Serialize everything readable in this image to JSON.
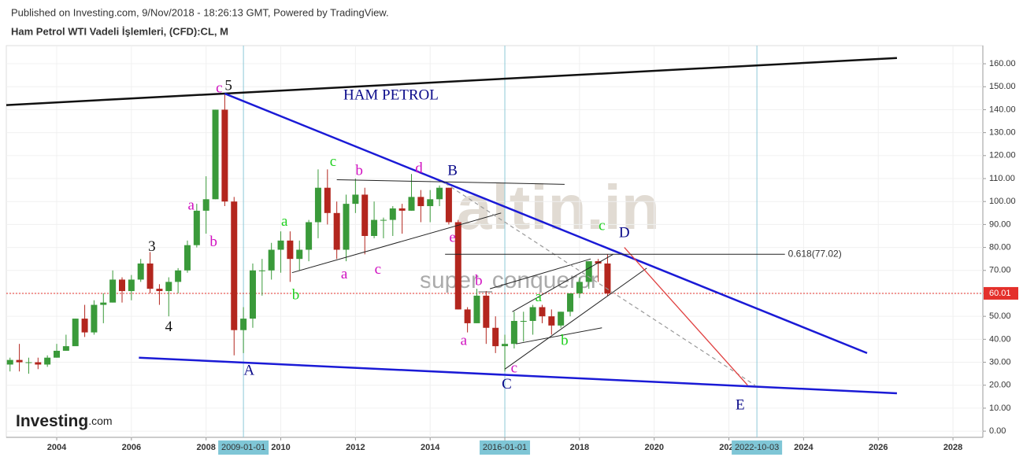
{
  "header": {
    "published": "Published on Investing.com, 9/Nov/2018 - 18:26:13 GMT, Powered by TradingView.",
    "symbol": "Ham Petrol WTI Vadeli İşlemleri, (CFD):CL, M"
  },
  "logo": {
    "name": "Investing",
    "suffix": ".com"
  },
  "watermarks": [
    "altin.in",
    "super_conqueror"
  ],
  "chart_data": {
    "type": "candlestick",
    "grid": true,
    "xlim": [
      2002.65,
      2028.8
    ],
    "xticks": [
      2004,
      2006,
      2008,
      2010,
      2012,
      2014,
      2016,
      2018,
      2020,
      2022,
      2024,
      2026,
      2028
    ],
    "ylim": [
      -2.7,
      167.9
    ],
    "yticks": [
      {
        "value": 0,
        "label": "0.00"
      },
      {
        "value": 10,
        "label": "10.00"
      },
      {
        "value": 20,
        "label": "20.00"
      },
      {
        "value": 30,
        "label": "30.00"
      },
      {
        "value": 40,
        "label": "40.00"
      },
      {
        "value": 50,
        "label": "50.00"
      },
      {
        "value": 60,
        "label": "60.00"
      },
      {
        "value": 70,
        "label": "70.00"
      },
      {
        "value": 80,
        "label": "80.00"
      },
      {
        "value": 90,
        "label": "90.00"
      },
      {
        "value": 100,
        "label": "100.00"
      },
      {
        "value": 110,
        "label": "110.00"
      },
      {
        "value": 120,
        "label": "120.00"
      },
      {
        "value": 130,
        "label": "130.00"
      },
      {
        "value": 140,
        "label": "140.00"
      },
      {
        "value": 150,
        "label": "150.00"
      },
      {
        "value": 160,
        "label": "160.00"
      }
    ],
    "up_color": "#3a9a3a",
    "down_color": "#b3261e",
    "last_price": 60.01,
    "last_price_color": "#e4302b",
    "x": [
      2002.75,
      2003,
      2003.25,
      2003.5,
      2003.75,
      2004,
      2004.25,
      2004.5,
      2004.75,
      2005,
      2005.25,
      2005.5,
      2005.75,
      2006,
      2006.25,
      2006.5,
      2006.75,
      2007,
      2007.25,
      2007.5,
      2007.75,
      2008,
      2008.25,
      2008.5,
      2008.75,
      2009,
      2009.25,
      2009.5,
      2009.75,
      2010,
      2010.25,
      2010.5,
      2010.75,
      2011,
      2011.25,
      2011.5,
      2011.75,
      2012,
      2012.25,
      2012.5,
      2012.75,
      2013,
      2013.25,
      2013.5,
      2013.75,
      2014,
      2014.25,
      2014.5,
      2014.75,
      2015,
      2015.25,
      2015.5,
      2015.75,
      2016,
      2016.25,
      2016.5,
      2016.75,
      2017,
      2017.25,
      2017.5,
      2017.75,
      2018,
      2018.25,
      2018.5,
      2018.75
    ],
    "open": [
      29,
      31,
      30,
      30,
      29,
      32,
      35,
      37,
      49,
      43,
      55,
      56,
      66,
      61,
      66,
      73,
      62,
      61,
      65,
      70,
      81,
      96,
      101,
      140,
      100,
      44,
      49,
      70,
      70,
      79,
      83,
      75,
      79,
      91,
      106,
      95,
      79,
      99,
      103,
      85,
      92,
      92,
      97,
      96,
      102,
      98,
      101,
      106,
      91,
      53,
      47,
      59,
      45,
      37,
      38,
      48,
      48,
      54,
      50,
      46,
      52,
      60,
      65,
      74,
      73
    ],
    "high": [
      32,
      38,
      32,
      32,
      33,
      38,
      42,
      49,
      55,
      57,
      60,
      70,
      67,
      68,
      75,
      78,
      64,
      67,
      71,
      83,
      99,
      111,
      140,
      147,
      102,
      54,
      73,
      75,
      82,
      87,
      87,
      83,
      92,
      114,
      114,
      100,
      103,
      110,
      106,
      100,
      93,
      98,
      99,
      112,
      105,
      105,
      107,
      106,
      92,
      54,
      62,
      61,
      50,
      42,
      52,
      52,
      55,
      55,
      53,
      52,
      60,
      67,
      73,
      75,
      77
    ],
    "low": [
      26,
      26,
      25,
      27,
      28,
      32,
      35,
      38,
      41,
      42,
      47,
      56,
      56,
      57,
      65,
      60,
      55,
      50,
      60,
      69,
      80,
      86,
      101,
      98,
      33,
      34,
      45,
      59,
      66,
      69,
      65,
      70,
      74,
      84,
      90,
      75,
      74,
      95,
      77,
      84,
      84,
      85,
      86,
      96,
      91,
      91,
      98,
      90,
      53,
      43,
      47,
      38,
      34,
      26,
      36,
      39,
      42,
      47,
      42,
      45,
      50,
      58,
      62,
      65,
      59
    ],
    "close": [
      31,
      30,
      30,
      29,
      32,
      35,
      37,
      49,
      43,
      55,
      56,
      66,
      61,
      66,
      73,
      62,
      61,
      65,
      70,
      81,
      96,
      101,
      140,
      100,
      44,
      49,
      70,
      70,
      79,
      83,
      75,
      79,
      91,
      106,
      95,
      79,
      99,
      103,
      85,
      92,
      92,
      97,
      96,
      102,
      98,
      101,
      106,
      91,
      53,
      47,
      59,
      45,
      37,
      38,
      48,
      48,
      54,
      50,
      46,
      52,
      60,
      65,
      74,
      73,
      60.01
    ],
    "vlines": [
      {
        "value": 2009.0,
        "label": "2009-01-01"
      },
      {
        "value": 2016.0,
        "label": "2016-01-01"
      },
      {
        "value": 2022.75,
        "label": "2022-10-03"
      }
    ],
    "lines": [
      {
        "color": "#111111",
        "width": 2.5,
        "x": [
          2002.65,
          2026.5
        ],
        "y": [
          142,
          162.5
        ]
      },
      {
        "color": "#1a1ad6",
        "width": 2.5,
        "x": [
          2008.5,
          2025.7
        ],
        "y": [
          147,
          34
        ]
      },
      {
        "color": "#1a1ad6",
        "width": 2.5,
        "x": [
          2006.2,
          2026.5
        ],
        "y": [
          32,
          16.5
        ]
      },
      {
        "color": "#222222",
        "width": 1,
        "x": [
          2011.5,
          2017.6
        ],
        "y": [
          109.5,
          107.5
        ]
      },
      {
        "color": "#222222",
        "width": 1,
        "x": [
          2010.3,
          2015.9
        ],
        "y": [
          69,
          95
        ]
      },
      {
        "color": "#222222",
        "width": 1,
        "x": [
          2016,
          2019.8
        ],
        "y": [
          27,
          71
        ]
      },
      {
        "color": "#222222",
        "width": 1,
        "x": [
          2016.2,
          2018.9
        ],
        "y": [
          52,
          77
        ]
      },
      {
        "color": "#222222",
        "width": 1,
        "x": [
          2016.3,
          2018.6
        ],
        "y": [
          38,
          45
        ]
      },
      {
        "color": "#222222",
        "width": 1,
        "x": [
          2015.6,
          2018.3
        ],
        "y": [
          62,
          75
        ]
      },
      {
        "color": "#999999",
        "width": 1.2,
        "dash": "5,4",
        "x": [
          2014.4,
          2022.7
        ],
        "y": [
          108,
          20
        ]
      },
      {
        "color": "#e04040",
        "width": 1.3,
        "x": [
          2019.2,
          2022.5
        ],
        "y": [
          80,
          20
        ]
      }
    ],
    "fib": {
      "label": "0.618(77.02)",
      "value": 77.02,
      "x": [
        2014.4,
        2023.5
      ]
    },
    "annotations": [
      {
        "text": "HAM PETROL",
        "x": 2012.95,
        "y": 146,
        "color": "#0a0a8a"
      },
      {
        "text": "5",
        "x": 2008.6,
        "y": 150,
        "color": "#111111"
      },
      {
        "text": "c",
        "x": 2008.35,
        "y": 149,
        "color": "#d010c0"
      },
      {
        "text": "3",
        "x": 2006.55,
        "y": 80,
        "color": "#111111"
      },
      {
        "text": "4",
        "x": 2007.0,
        "y": 45,
        "color": "#111111"
      },
      {
        "text": "a",
        "x": 2007.6,
        "y": 98,
        "color": "#d010c0"
      },
      {
        "text": "b",
        "x": 2008.2,
        "y": 82,
        "color": "#d010c0"
      },
      {
        "text": "A",
        "x": 2009.15,
        "y": 26,
        "color": "#0a0a8a"
      },
      {
        "text": "a",
        "x": 2010.1,
        "y": 91,
        "color": "#20d020"
      },
      {
        "text": "b",
        "x": 2010.4,
        "y": 59,
        "color": "#20d020"
      },
      {
        "text": "c",
        "x": 2011.4,
        "y": 117,
        "color": "#20d020"
      },
      {
        "text": "a",
        "x": 2011.7,
        "y": 68,
        "color": "#d010c0"
      },
      {
        "text": "b",
        "x": 2012.1,
        "y": 113,
        "color": "#d010c0"
      },
      {
        "text": "c",
        "x": 2012.6,
        "y": 70,
        "color": "#d010c0"
      },
      {
        "text": "d",
        "x": 2013.7,
        "y": 114,
        "color": "#d010c0"
      },
      {
        "text": "B",
        "x": 2014.6,
        "y": 113,
        "color": "#0a0a8a"
      },
      {
        "text": "e",
        "x": 2014.6,
        "y": 84,
        "color": "#d010c0"
      },
      {
        "text": "b",
        "x": 2015.3,
        "y": 65,
        "color": "#d010c0"
      },
      {
        "text": "a",
        "x": 2014.9,
        "y": 39,
        "color": "#d010c0"
      },
      {
        "text": "c",
        "x": 2016.25,
        "y": 27,
        "color": "#d010c0"
      },
      {
        "text": "C",
        "x": 2016.05,
        "y": 20,
        "color": "#0a0a8a"
      },
      {
        "text": "a",
        "x": 2016.9,
        "y": 58,
        "color": "#20d020"
      },
      {
        "text": "b",
        "x": 2017.6,
        "y": 39,
        "color": "#20d020"
      },
      {
        "text": "c",
        "x": 2018.6,
        "y": 89,
        "color": "#20d020"
      },
      {
        "text": "D",
        "x": 2019.2,
        "y": 86,
        "color": "#0a0a8a"
      },
      {
        "text": "E",
        "x": 2022.3,
        "y": 11,
        "color": "#0a0a8a"
      }
    ]
  }
}
